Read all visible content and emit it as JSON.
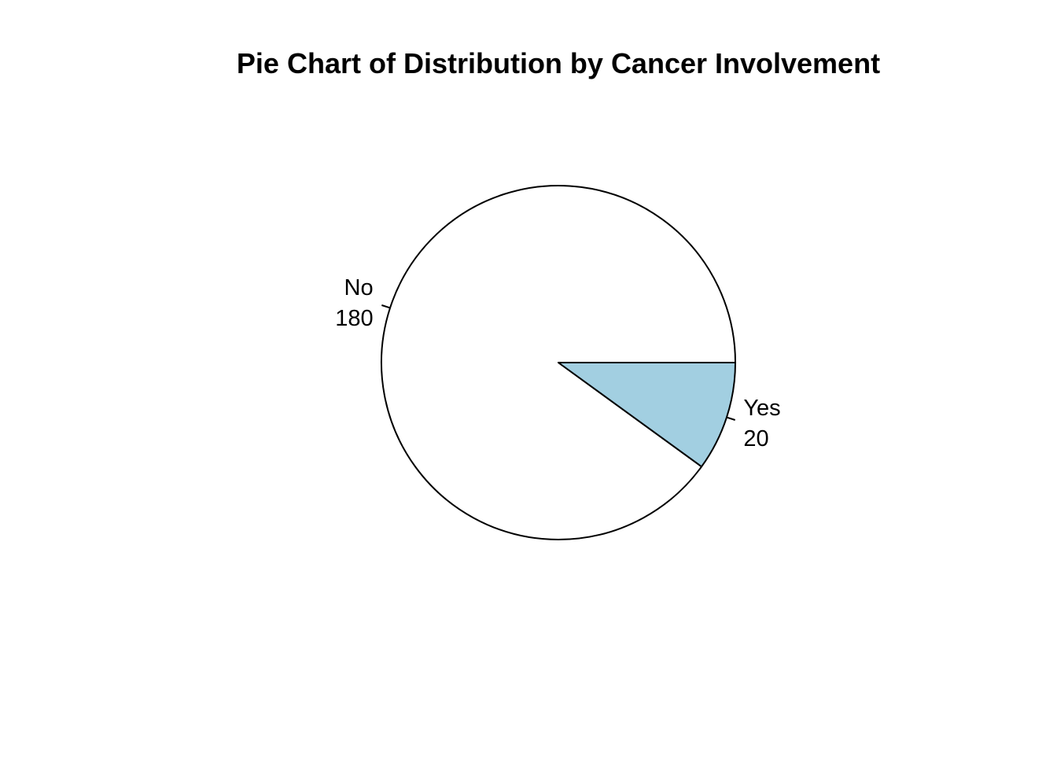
{
  "chart_data": {
    "type": "pie",
    "title": "Pie Chart of Distribution by Cancer Involvement",
    "start_angle_deg": 0,
    "direction": "counterclockwise",
    "labels_show_values": true,
    "slices": [
      {
        "label": "No",
        "value": 180,
        "color": "#FFFFFF"
      },
      {
        "label": "Yes",
        "value": 20,
        "color": "#A2CFE1"
      }
    ],
    "outline_color": "#000000"
  }
}
